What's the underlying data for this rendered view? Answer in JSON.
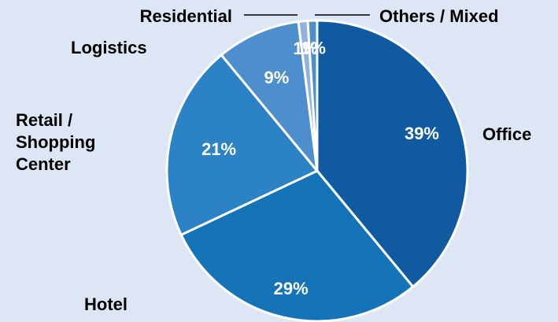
{
  "chart_data": {
    "type": "pie",
    "title": "",
    "start_angle_deg": 0,
    "direction": "clockwise",
    "slices": [
      {
        "label": "Office",
        "value": 39,
        "value_label": "39%",
        "color": "#0f5aa0"
      },
      {
        "label": "Hotel",
        "value": 29,
        "value_label": "29%",
        "color": "#1574b8"
      },
      {
        "label": "Retail / Shopping Center",
        "label_lines": [
          "Retail /",
          "Shopping",
          "Center"
        ],
        "value": 21,
        "value_label": "21%",
        "color": "#2b82c4"
      },
      {
        "label": "Logistics",
        "value": 9,
        "value_label": "9%",
        "color": "#4d8fcc"
      },
      {
        "label": "Residential",
        "value": 1,
        "value_label": "1%",
        "color": "#8fb3de"
      },
      {
        "label": "Others / Mixed",
        "value": 1,
        "value_label": "1%",
        "color": "#4d8fcc"
      }
    ]
  }
}
